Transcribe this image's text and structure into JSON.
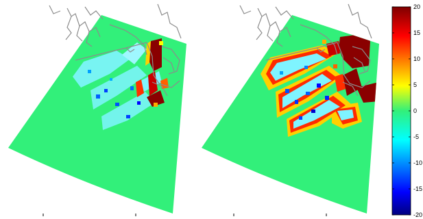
{
  "chart_data": {
    "type": "heatmap",
    "panels": [
      {
        "name": "",
        "map": "left"
      },
      {
        "name": "",
        "map": "right"
      }
    ],
    "colormap": "jet",
    "colorbar": {
      "range": [
        -20,
        20
      ],
      "ticks": [
        "20",
        "15",
        "10",
        "5",
        "0",
        "-5",
        "-10",
        "-15",
        "-20"
      ],
      "placement": "right"
    },
    "colors": {
      "background_field": "#32f07a",
      "coastline": "#8c8c8c"
    }
  }
}
